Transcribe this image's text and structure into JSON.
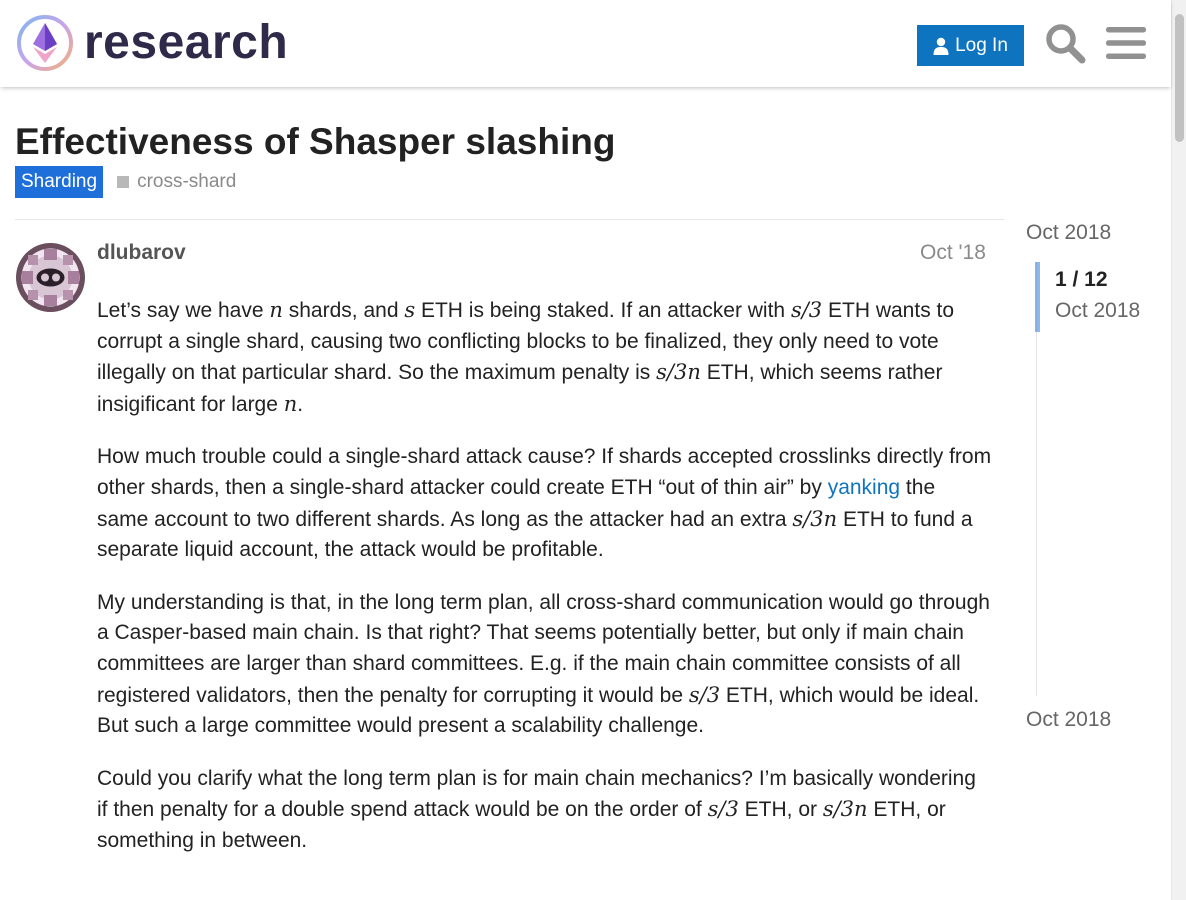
{
  "header": {
    "logo_text": "research",
    "login_label": "Log In",
    "search_icon": "search-icon",
    "menu_icon": "hamburger-menu-icon"
  },
  "topic": {
    "title": "Effectiveness of Shasper slashing",
    "category": "Sharding",
    "tag": "cross-shard"
  },
  "post": {
    "username": "dlubarov",
    "date": "Oct '18",
    "paragraphs": {
      "p1": {
        "a": "Let’s say we have ",
        "m1": "n",
        "b": " shards, and ",
        "m2": "s",
        "c": " ETH is being staked. If an attacker with ",
        "m3": "s/3",
        "d": " ETH wants to corrupt a single shard, causing two conflicting blocks to be finalized, they only need to vote illegally on that particular shard. So the maximum penalty is ",
        "m4": "s/3n",
        "e": " ETH, which seems rather insigificant for large ",
        "m5": "n",
        "f": "."
      },
      "p2": {
        "a": "How much trouble could a single-shard attack cause? If shards accepted crosslinks directly from other shards, then a single-shard attacker could create ETH “out of thin air” by ",
        "link": "yanking",
        "b": " the same account to two different shards. As long as the attacker had an extra ",
        "m1": "s/3n",
        "c": " ETH to fund a separate liquid account, the attack would be profitable."
      },
      "p3": {
        "a": "My understanding is that, in the long term plan, all cross-shard communication would go through a Casper-based main chain. Is that right? That seems potentially better, but only if main chain committees are larger than shard committees. E.g. if the main chain committee consists of all registered validators, then the penalty for corrupting it would be ",
        "m1": "s/3",
        "b": " ETH, which would be ideal. But such a large committee would present a scalability challenge."
      },
      "p4": {
        "a": "Could you clarify what the long term plan is for main chain mechanics? I’m basically wondering if then penalty for a double spend attack would be on the order of ",
        "m1": "s/3",
        "b": " ETH, or ",
        "m2": "s/3n",
        "c": " ETH, or something in between."
      }
    }
  },
  "timeline": {
    "start_date": "Oct 2018",
    "position": "1 / 12",
    "position_date": "Oct 2018",
    "end_date": "Oct 2018"
  },
  "colors": {
    "brand_blue": "#0f74c0",
    "category_blue": "#1e6fd9",
    "link": "#0f74c0"
  }
}
